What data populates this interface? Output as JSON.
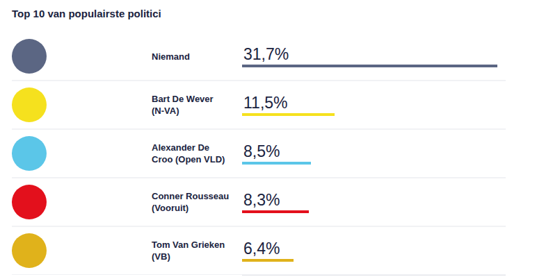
{
  "chart_data": {
    "type": "bar",
    "title": "Top 10 van populairste politici",
    "orientation": "horizontal",
    "categories": [
      "Niemand",
      "Bart De Wever (N-VA)",
      "Alexander De Croo (Open VLD)",
      "Conner Rousseau (Vooruit)",
      "Tom Van Grieken (VB)"
    ],
    "values": [
      31.7,
      11.5,
      8.5,
      8.3,
      6.4
    ],
    "value_labels": [
      "31,7%",
      "11,5%",
      "8,5%",
      "8,3%",
      "6,4%"
    ],
    "colors": [
      "#5b6683",
      "#f5e11e",
      "#5bc6e8",
      "#e3101c",
      "#e0b21b"
    ],
    "xlim": [
      0,
      32.7
    ],
    "xticks": [],
    "data_labels": true,
    "tick_labels": false,
    "grid": false
  }
}
